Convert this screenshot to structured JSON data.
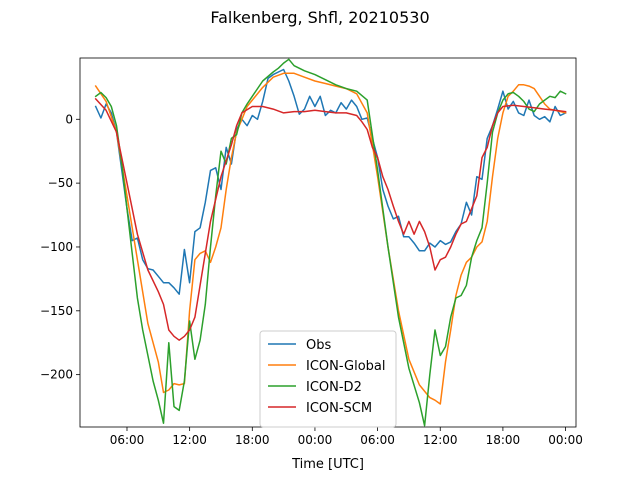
{
  "chart_data": {
    "type": "line",
    "title": "Falkenberg, Shfl, 20210530",
    "xlabel": "Time [UTC]",
    "ylabel": "",
    "x_unit": "hours since 2021-05-30 00:00 UTC",
    "xlim": [
      1.5,
      49.0
    ],
    "ylim": [
      -241,
      48
    ],
    "x_ticks": [
      {
        "value": 6,
        "label": "06:00"
      },
      {
        "value": 12,
        "label": "12:00"
      },
      {
        "value": 18,
        "label": "18:00"
      },
      {
        "value": 24,
        "label": "00:00"
      },
      {
        "value": 30,
        "label": "06:00"
      },
      {
        "value": 36,
        "label": "12:00"
      },
      {
        "value": 42,
        "label": "18:00"
      },
      {
        "value": 48,
        "label": "00:00"
      }
    ],
    "y_ticks": [
      {
        "value": 0,
        "label": "0"
      },
      {
        "value": -50,
        "label": "−50"
      },
      {
        "value": -100,
        "label": "−100"
      },
      {
        "value": -150,
        "label": "−150"
      },
      {
        "value": -200,
        "label": "−200"
      }
    ],
    "legend": {
      "placement": "lower center"
    },
    "series": [
      {
        "name": "Obs",
        "color": "#1f77b4",
        "points": [
          [
            3.0,
            10
          ],
          [
            3.5,
            1
          ],
          [
            4.0,
            12
          ],
          [
            4.5,
            5
          ],
          [
            5.0,
            -10
          ],
          [
            5.5,
            -40
          ],
          [
            6.0,
            -70
          ],
          [
            6.5,
            -95
          ],
          [
            7.0,
            -93
          ],
          [
            7.5,
            -110
          ],
          [
            8.0,
            -117
          ],
          [
            8.5,
            -118
          ],
          [
            9.0,
            -123
          ],
          [
            9.5,
            -128
          ],
          [
            10.0,
            -128
          ],
          [
            10.5,
            -132
          ],
          [
            11.0,
            -137
          ],
          [
            11.5,
            -102
          ],
          [
            12.0,
            -128
          ],
          [
            12.5,
            -88
          ],
          [
            13.0,
            -85
          ],
          [
            13.5,
            -65
          ],
          [
            14.0,
            -40
          ],
          [
            14.5,
            -38
          ],
          [
            15.0,
            -55
          ],
          [
            15.5,
            -22
          ],
          [
            16.0,
            -35
          ],
          [
            16.5,
            -8
          ],
          [
            17.0,
            0
          ],
          [
            17.5,
            -5
          ],
          [
            18.0,
            3
          ],
          [
            18.5,
            0
          ],
          [
            19.0,
            14
          ],
          [
            19.5,
            32
          ],
          [
            20.0,
            35
          ],
          [
            20.5,
            37
          ],
          [
            21.0,
            39
          ],
          [
            21.5,
            30
          ],
          [
            22.0,
            18
          ],
          [
            22.5,
            4
          ],
          [
            23.0,
            8
          ],
          [
            23.5,
            18
          ],
          [
            24.0,
            10
          ],
          [
            24.5,
            18
          ],
          [
            25.0,
            3
          ],
          [
            25.5,
            7
          ],
          [
            26.0,
            5
          ],
          [
            26.5,
            13
          ],
          [
            27.0,
            8
          ],
          [
            27.5,
            15
          ],
          [
            28.0,
            10
          ],
          [
            28.5,
            0
          ],
          [
            29.0,
            1
          ],
          [
            29.5,
            -15
          ],
          [
            30.0,
            -30
          ],
          [
            30.5,
            -55
          ],
          [
            31.0,
            -68
          ],
          [
            31.5,
            -78
          ],
          [
            32.0,
            -76
          ],
          [
            32.5,
            -92
          ],
          [
            33.0,
            -92
          ],
          [
            33.5,
            -97
          ],
          [
            34.0,
            -103
          ],
          [
            34.5,
            -103
          ],
          [
            35.0,
            -97
          ],
          [
            35.5,
            -100
          ],
          [
            36.0,
            -95
          ],
          [
            36.5,
            -98
          ],
          [
            37.0,
            -96
          ],
          [
            37.5,
            -88
          ],
          [
            38.0,
            -82
          ],
          [
            38.5,
            -65
          ],
          [
            39.0,
            -75
          ],
          [
            39.5,
            -45
          ],
          [
            40.0,
            -47
          ],
          [
            40.5,
            -15
          ],
          [
            41.0,
            -5
          ],
          [
            41.5,
            8
          ],
          [
            42.0,
            22
          ],
          [
            42.5,
            8
          ],
          [
            43.0,
            14
          ],
          [
            43.5,
            5
          ],
          [
            44.0,
            3
          ],
          [
            44.5,
            15
          ],
          [
            45.0,
            3
          ],
          [
            45.5,
            0
          ],
          [
            46.0,
            2
          ],
          [
            46.5,
            -2
          ],
          [
            47.0,
            10
          ],
          [
            47.5,
            3
          ],
          [
            48.0,
            5
          ]
        ]
      },
      {
        "name": "ICON-Global",
        "color": "#ff7f0e",
        "points": [
          [
            3.0,
            26
          ],
          [
            4.0,
            14
          ],
          [
            5.0,
            -10
          ],
          [
            6.0,
            -60
          ],
          [
            7.0,
            -110
          ],
          [
            8.0,
            -160
          ],
          [
            9.0,
            -190
          ],
          [
            9.5,
            -214
          ],
          [
            10.0,
            -212
          ],
          [
            10.5,
            -207
          ],
          [
            11.0,
            -208
          ],
          [
            11.5,
            -207
          ],
          [
            12.0,
            -150
          ],
          [
            12.5,
            -110
          ],
          [
            13.0,
            -105
          ],
          [
            13.5,
            -103
          ],
          [
            14.0,
            -112
          ],
          [
            14.5,
            -100
          ],
          [
            15.0,
            -85
          ],
          [
            15.5,
            -55
          ],
          [
            16.0,
            -30
          ],
          [
            16.5,
            -10
          ],
          [
            17.0,
            0
          ],
          [
            17.5,
            10
          ],
          [
            18.0,
            15
          ],
          [
            19.0,
            25
          ],
          [
            20.0,
            33
          ],
          [
            21.0,
            36
          ],
          [
            22.0,
            36
          ],
          [
            23.0,
            33
          ],
          [
            24.0,
            30
          ],
          [
            25.0,
            28
          ],
          [
            26.0,
            26
          ],
          [
            27.0,
            24
          ],
          [
            28.0,
            20
          ],
          [
            29.0,
            5
          ],
          [
            30.0,
            -45
          ],
          [
            31.0,
            -100
          ],
          [
            32.0,
            -150
          ],
          [
            33.0,
            -188
          ],
          [
            34.0,
            -208
          ],
          [
            35.0,
            -218
          ],
          [
            35.5,
            -220
          ],
          [
            36.0,
            -223
          ],
          [
            36.5,
            -190
          ],
          [
            37.0,
            -165
          ],
          [
            37.5,
            -138
          ],
          [
            38.0,
            -122
          ],
          [
            38.5,
            -112
          ],
          [
            39.0,
            -108
          ],
          [
            39.5,
            -100
          ],
          [
            40.0,
            -96
          ],
          [
            40.5,
            -80
          ],
          [
            41.0,
            -45
          ],
          [
            41.5,
            -15
          ],
          [
            42.0,
            5
          ],
          [
            42.5,
            18
          ],
          [
            43.0,
            22
          ],
          [
            43.5,
            27
          ],
          [
            44.0,
            27
          ],
          [
            44.5,
            26
          ],
          [
            45.0,
            24
          ],
          [
            45.5,
            18
          ],
          [
            46.0,
            12
          ],
          [
            46.5,
            8
          ],
          [
            47.0,
            7
          ],
          [
            48.0,
            5
          ]
        ]
      },
      {
        "name": "ICON-D2",
        "color": "#2ca02c",
        "points": [
          [
            3.0,
            18
          ],
          [
            3.5,
            21
          ],
          [
            4.0,
            17
          ],
          [
            4.5,
            10
          ],
          [
            5.0,
            -5
          ],
          [
            5.5,
            -35
          ],
          [
            6.0,
            -70
          ],
          [
            6.5,
            -105
          ],
          [
            7.0,
            -140
          ],
          [
            7.5,
            -165
          ],
          [
            8.0,
            -185
          ],
          [
            8.5,
            -205
          ],
          [
            9.0,
            -220
          ],
          [
            9.5,
            -238
          ],
          [
            10.0,
            -175
          ],
          [
            10.5,
            -225
          ],
          [
            11.0,
            -228
          ],
          [
            11.5,
            -205
          ],
          [
            12.0,
            -158
          ],
          [
            12.5,
            -188
          ],
          [
            13.0,
            -173
          ],
          [
            13.5,
            -145
          ],
          [
            14.0,
            -100
          ],
          [
            14.5,
            -60
          ],
          [
            15.0,
            -25
          ],
          [
            15.5,
            -35
          ],
          [
            16.0,
            -15
          ],
          [
            16.5,
            -12
          ],
          [
            17.0,
            5
          ],
          [
            17.5,
            12
          ],
          [
            18.0,
            18
          ],
          [
            19.0,
            30
          ],
          [
            20.0,
            37
          ],
          [
            20.5,
            40
          ],
          [
            21.0,
            44
          ],
          [
            21.5,
            47
          ],
          [
            22.0,
            42
          ],
          [
            23.0,
            38
          ],
          [
            24.0,
            35
          ],
          [
            25.0,
            31
          ],
          [
            26.0,
            27
          ],
          [
            27.0,
            24
          ],
          [
            28.0,
            22
          ],
          [
            29.0,
            15
          ],
          [
            30.0,
            -40
          ],
          [
            31.0,
            -100
          ],
          [
            32.0,
            -155
          ],
          [
            33.0,
            -195
          ],
          [
            34.0,
            -222
          ],
          [
            34.5,
            -240
          ],
          [
            35.0,
            -200
          ],
          [
            35.5,
            -165
          ],
          [
            36.0,
            -185
          ],
          [
            36.5,
            -178
          ],
          [
            37.0,
            -155
          ],
          [
            37.5,
            -140
          ],
          [
            38.0,
            -138
          ],
          [
            38.5,
            -130
          ],
          [
            39.0,
            -108
          ],
          [
            39.5,
            -95
          ],
          [
            40.0,
            -85
          ],
          [
            40.5,
            -50
          ],
          [
            41.0,
            -10
          ],
          [
            41.5,
            5
          ],
          [
            42.0,
            15
          ],
          [
            42.5,
            20
          ],
          [
            43.0,
            21
          ],
          [
            43.5,
            18
          ],
          [
            44.0,
            14
          ],
          [
            44.5,
            8
          ],
          [
            45.0,
            6
          ],
          [
            45.5,
            12
          ],
          [
            46.0,
            15
          ],
          [
            46.5,
            18
          ],
          [
            47.0,
            17
          ],
          [
            47.5,
            22
          ],
          [
            48.0,
            20
          ]
        ]
      },
      {
        "name": "ICON-SCM",
        "color": "#d62728",
        "points": [
          [
            3.0,
            16
          ],
          [
            4.0,
            7
          ],
          [
            5.0,
            -10
          ],
          [
            6.0,
            -50
          ],
          [
            7.0,
            -90
          ],
          [
            8.0,
            -118
          ],
          [
            9.0,
            -135
          ],
          [
            9.5,
            -145
          ],
          [
            10.0,
            -165
          ],
          [
            10.5,
            -170
          ],
          [
            11.0,
            -173
          ],
          [
            11.5,
            -170
          ],
          [
            12.0,
            -165
          ],
          [
            12.5,
            -155
          ],
          [
            13.0,
            -130
          ],
          [
            14.0,
            -80
          ],
          [
            15.0,
            -45
          ],
          [
            16.0,
            -20
          ],
          [
            16.5,
            -5
          ],
          [
            17.0,
            5
          ],
          [
            18.0,
            10
          ],
          [
            19.0,
            10
          ],
          [
            20.0,
            8
          ],
          [
            21.0,
            5
          ],
          [
            22.0,
            6
          ],
          [
            23.0,
            6
          ],
          [
            24.0,
            7
          ],
          [
            25.0,
            6
          ],
          [
            26.0,
            5
          ],
          [
            27.0,
            5
          ],
          [
            28.0,
            3
          ],
          [
            28.5,
            -2
          ],
          [
            29.0,
            -8
          ],
          [
            29.5,
            -22
          ],
          [
            30.0,
            -30
          ],
          [
            30.5,
            -45
          ],
          [
            31.0,
            -55
          ],
          [
            31.5,
            -68
          ],
          [
            32.0,
            -80
          ],
          [
            32.5,
            -90
          ],
          [
            33.0,
            -80
          ],
          [
            33.5,
            -90
          ],
          [
            34.0,
            -80
          ],
          [
            34.5,
            -88
          ],
          [
            35.0,
            -100
          ],
          [
            35.5,
            -118
          ],
          [
            36.0,
            -110
          ],
          [
            36.5,
            -108
          ],
          [
            37.0,
            -100
          ],
          [
            37.5,
            -90
          ],
          [
            38.0,
            -82
          ],
          [
            38.5,
            -80
          ],
          [
            39.0,
            -70
          ],
          [
            39.5,
            -60
          ],
          [
            40.0,
            -30
          ],
          [
            40.5,
            -22
          ],
          [
            41.0,
            -5
          ],
          [
            41.5,
            5
          ],
          [
            42.0,
            10
          ],
          [
            43.0,
            11
          ],
          [
            44.0,
            10
          ],
          [
            45.0,
            9
          ],
          [
            46.0,
            8
          ],
          [
            47.0,
            7
          ],
          [
            48.0,
            6
          ]
        ]
      }
    ]
  }
}
